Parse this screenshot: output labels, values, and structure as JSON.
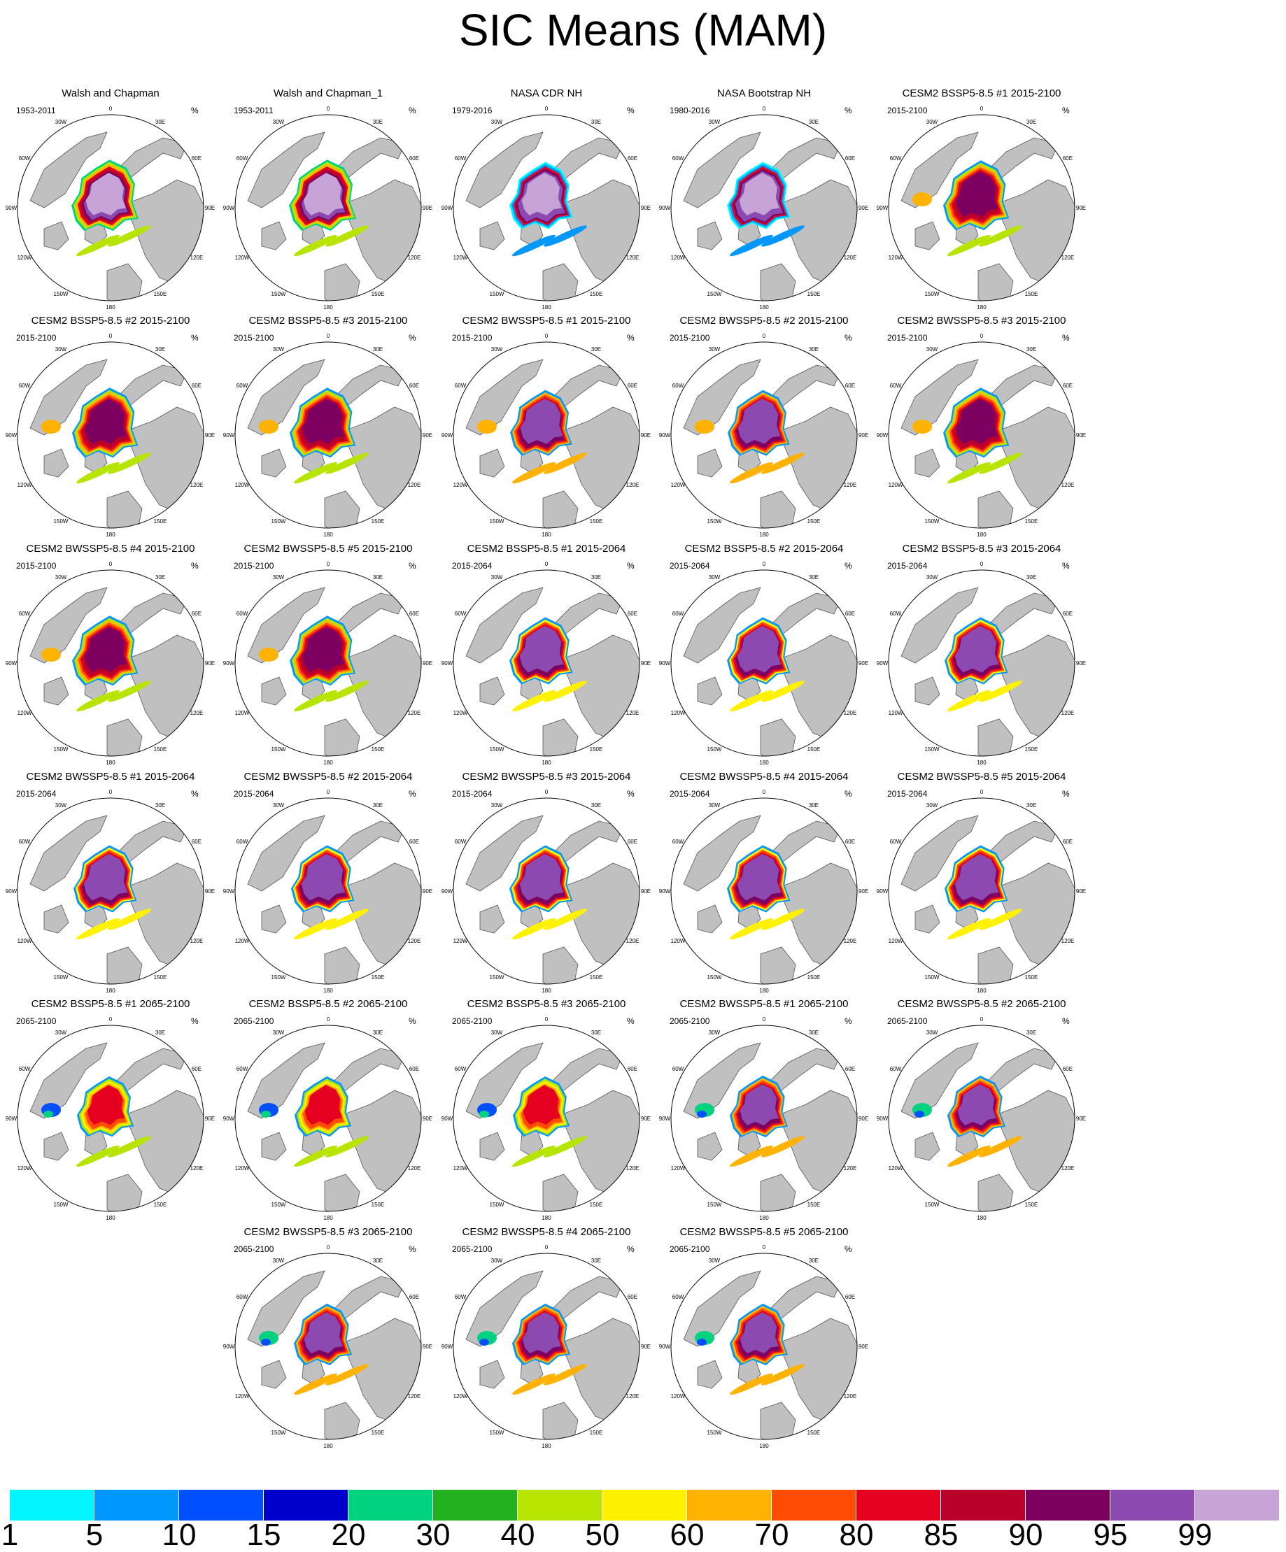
{
  "title": "SIC Means (MAM)",
  "unit_symbol": "%",
  "lon_labels": [
    "180",
    "150E",
    "120E",
    "90E",
    "60E",
    "30E",
    "0",
    "30W",
    "60W",
    "90W",
    "120W",
    "150W"
  ],
  "colorbar": {
    "labels": [
      "1",
      "5",
      "10",
      "15",
      "20",
      "30",
      "40",
      "50",
      "60",
      "70",
      "80",
      "85",
      "90",
      "95",
      "99"
    ],
    "colors": [
      "#00f5ff",
      "#0097ff",
      "#0050ff",
      "#0000cc",
      "#00d27f",
      "#22b21e",
      "#b7e400",
      "#fff200",
      "#ffb200",
      "#ff4c00",
      "#e4001e",
      "#b8002a",
      "#7d0060",
      "#8c4ab0",
      "#c7a4d8"
    ]
  },
  "panels": [
    {
      "title": "Walsh and Chapman",
      "period": "1953-2011",
      "scheme": "obs"
    },
    {
      "title": "Walsh and Chapman_1",
      "period": "1953-2011",
      "scheme": "obs"
    },
    {
      "title": "NASA CDR NH",
      "period": "1979-2016",
      "scheme": "obs2"
    },
    {
      "title": "NASA Bootstrap NH",
      "period": "1980-2016",
      "scheme": "obs2"
    },
    {
      "title": "CESM2 BSSP5-8.5 #1 2015-2100",
      "period": "2015-2100",
      "scheme": "mid"
    },
    {
      "title": "CESM2 BSSP5-8.5 #2 2015-2100",
      "period": "2015-2100",
      "scheme": "mid"
    },
    {
      "title": "CESM2 BSSP5-8.5 #3 2015-2100",
      "period": "2015-2100",
      "scheme": "mid"
    },
    {
      "title": "CESM2 BWSSP5-8.5 #1 2015-2100",
      "period": "2015-2100",
      "scheme": "mid2"
    },
    {
      "title": "CESM2 BWSSP5-8.5 #2 2015-2100",
      "period": "2015-2100",
      "scheme": "mid2"
    },
    {
      "title": "CESM2 BWSSP5-8.5 #3 2015-2100",
      "period": "2015-2100",
      "scheme": "mid"
    },
    {
      "title": "CESM2 BWSSP5-8.5 #4 2015-2100",
      "period": "2015-2100",
      "scheme": "mid"
    },
    {
      "title": "CESM2 BWSSP5-8.5 #5 2015-2100",
      "period": "2015-2100",
      "scheme": "mid"
    },
    {
      "title": "CESM2 BSSP5-8.5 #1 2015-2064",
      "period": "2015-2064",
      "scheme": "early"
    },
    {
      "title": "CESM2 BSSP5-8.5 #2 2015-2064",
      "period": "2015-2064",
      "scheme": "early"
    },
    {
      "title": "CESM2 BSSP5-8.5 #3 2015-2064",
      "period": "2015-2064",
      "scheme": "early"
    },
    {
      "title": "CESM2 BWSSP5-8.5 #1 2015-2064",
      "period": "2015-2064",
      "scheme": "early"
    },
    {
      "title": "CESM2 BWSSP5-8.5 #2 2015-2064",
      "period": "2015-2064",
      "scheme": "early"
    },
    {
      "title": "CESM2 BWSSP5-8.5 #3 2015-2064",
      "period": "2015-2064",
      "scheme": "early"
    },
    {
      "title": "CESM2 BWSSP5-8.5 #4 2015-2064",
      "period": "2015-2064",
      "scheme": "early"
    },
    {
      "title": "CESM2 BWSSP5-8.5 #5 2015-2064",
      "period": "2015-2064",
      "scheme": "early"
    },
    {
      "title": "CESM2 BSSP5-8.5 #1 2065-2100",
      "period": "2065-2100",
      "scheme": "late"
    },
    {
      "title": "CESM2 BSSP5-8.5 #2 2065-2100",
      "period": "2065-2100",
      "scheme": "late"
    },
    {
      "title": "CESM2 BSSP5-8.5 #3 2065-2100",
      "period": "2065-2100",
      "scheme": "late"
    },
    {
      "title": "CESM2 BWSSP5-8.5 #1 2065-2100",
      "period": "2065-2100",
      "scheme": "late2"
    },
    {
      "title": "CESM2 BWSSP5-8.5 #2 2065-2100",
      "period": "2065-2100",
      "scheme": "late2"
    },
    {
      "title": "CESM2 BWSSP5-8.5 #3 2065-2100",
      "period": "2065-2100",
      "scheme": "late2"
    },
    {
      "title": "CESM2 BWSSP5-8.5 #4 2065-2100",
      "period": "2065-2100",
      "scheme": "late2"
    },
    {
      "title": "CESM2 BWSSP5-8.5 #5 2065-2100",
      "period": "2065-2100",
      "scheme": "late2"
    }
  ]
}
